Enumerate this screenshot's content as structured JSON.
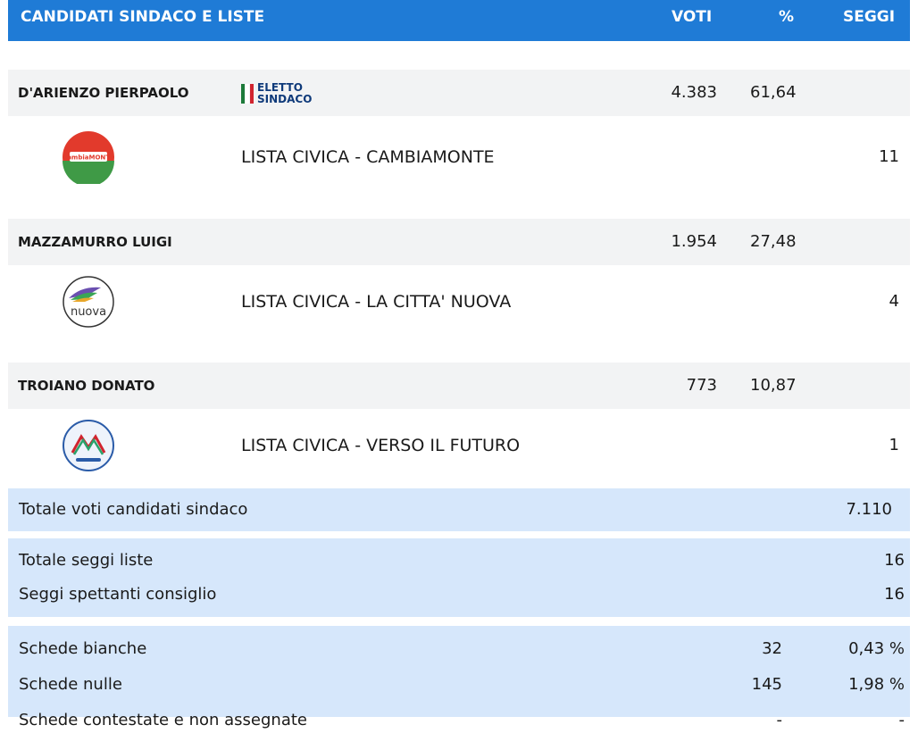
{
  "header": {
    "title": "CANDIDATI SINDACO E LISTE",
    "votes": "VOTI",
    "percent": "%",
    "seats": "SEGGI",
    "background": "#1f7bd6"
  },
  "elected_badge": {
    "text": "ELETTO\nSINDACO"
  },
  "candidates": [
    {
      "name": "D'ARIENZO PIERPAOLO",
      "votes": "4.383",
      "percent": "61,64",
      "elected": true,
      "list": {
        "name": "LISTA CIVICA - CAMBIAMONTE",
        "seats": "11",
        "logo_icon": "cambiamonte-logo-icon",
        "logo_text": "CambiaMONTE"
      }
    },
    {
      "name": "MAZZAMURRO LUIGI",
      "votes": "1.954",
      "percent": "27,48",
      "elected": false,
      "list": {
        "name": "LISTA CIVICA - LA CITTA' NUOVA",
        "seats": "4",
        "logo_icon": "la-citta-nuova-logo-icon",
        "logo_text": "nuova"
      }
    },
    {
      "name": "TROIANO DONATO",
      "votes": "773",
      "percent": "10,87",
      "elected": false,
      "list": {
        "name": "LISTA CIVICA - VERSO IL FUTURO",
        "seats": "1",
        "logo_icon": "verso-il-futuro-logo-icon",
        "logo_text": ""
      }
    }
  ],
  "totals": {
    "candidate_votes": {
      "label": "Totale voti candidati sindaco",
      "value": "7.110"
    },
    "list_seats": {
      "label": "Totale seggi liste",
      "value": "16"
    },
    "council_seats": {
      "label": "Seggi spettanti consiglio",
      "value": "16"
    }
  },
  "ballots": {
    "blank": {
      "label": "Schede bianche",
      "value": "32",
      "percent": "0,43 %"
    },
    "null": {
      "label": "Schede nulle",
      "value": "145",
      "percent": "1,98 %"
    },
    "contested": {
      "label": "Schede contestate e non assegnate",
      "value": "-",
      "percent": "-"
    }
  },
  "colors": {
    "accent": "#1f7bd6",
    "candidate_row": "#f2f3f4",
    "totals_bg": "#d6e7fb",
    "elected_text": "#0f3a7a"
  }
}
